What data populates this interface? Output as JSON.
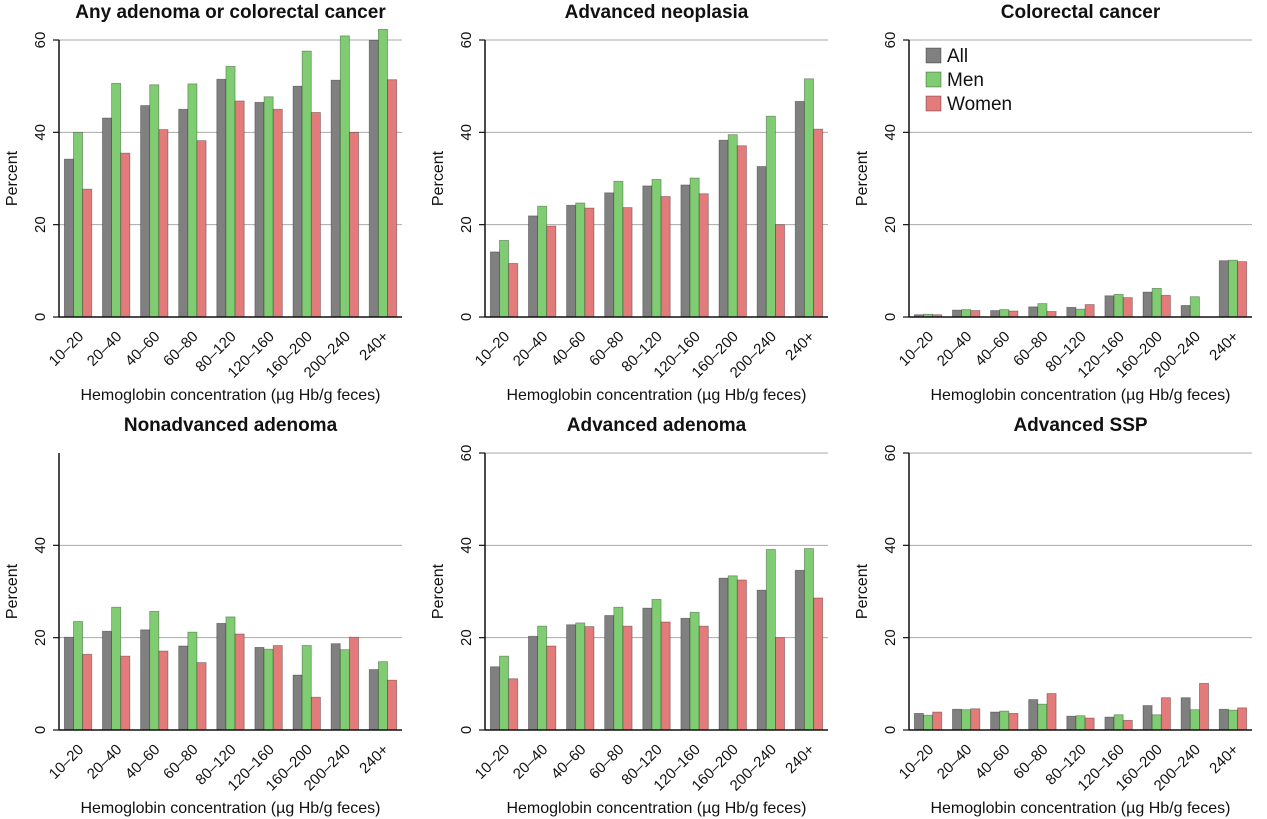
{
  "figure": {
    "categories": [
      "10–20",
      "20–40",
      "40–60",
      "60–80",
      "80–120",
      "120–160",
      "160–200",
      "200–240",
      "240+"
    ],
    "series_colors": {
      "All": "#808080",
      "Men": "#80cc73",
      "Women": "#e37b7b"
    },
    "legend": [
      {
        "name": "All",
        "color": "#808080"
      },
      {
        "name": "Men",
        "color": "#80cc73"
      },
      {
        "name": "Women",
        "color": "#e37b7b"
      }
    ],
    "legend_location": "top-left of the Colorectal cancer panel"
  },
  "chart_data": [
    {
      "type": "bar",
      "title": "Any adenoma or colorectal cancer",
      "xlabel": "Hemoglobin concentration (µg Hb/g feces)",
      "ylabel": "Percent",
      "ylim": [
        0,
        60
      ],
      "yticks": [
        0,
        20,
        40,
        60
      ],
      "ytick_labels": [
        "0",
        "20",
        "40",
        "60"
      ],
      "grid": true,
      "categories": [
        "10–20",
        "20–40",
        "40–60",
        "60–80",
        "80–120",
        "120–160",
        "160–200",
        "200–240",
        "240+"
      ],
      "series": [
        {
          "name": "All",
          "values": [
            34.2,
            43.1,
            45.8,
            45.0,
            51.5,
            46.5,
            50.0,
            51.3,
            59.9
          ]
        },
        {
          "name": "Men",
          "values": [
            40.0,
            50.6,
            50.3,
            50.5,
            54.3,
            47.7,
            57.6,
            60.9,
            62.3
          ]
        },
        {
          "name": "Women",
          "values": [
            27.7,
            35.5,
            40.6,
            38.2,
            46.8,
            45.0,
            44.3,
            40.0,
            51.4
          ]
        }
      ]
    },
    {
      "type": "bar",
      "title": "Advanced neoplasia",
      "xlabel": "Hemoglobin concentration (µg Hb/g feces)",
      "ylabel": "Percent",
      "ylim": [
        0,
        60
      ],
      "yticks": [
        0,
        20,
        40,
        60
      ],
      "ytick_labels": [
        "0",
        "20",
        "40",
        "60"
      ],
      "grid": true,
      "categories": [
        "10–20",
        "20–40",
        "40–60",
        "60–80",
        "80–120",
        "120–160",
        "160–200",
        "200–240",
        "240+"
      ],
      "series": [
        {
          "name": "All",
          "values": [
            14.1,
            21.9,
            24.2,
            26.9,
            28.4,
            28.6,
            38.3,
            32.6,
            46.7
          ]
        },
        {
          "name": "Men",
          "values": [
            16.6,
            24.0,
            24.7,
            29.4,
            29.8,
            30.1,
            39.5,
            43.5,
            51.6
          ]
        },
        {
          "name": "Women",
          "values": [
            11.6,
            19.7,
            23.6,
            23.7,
            26.1,
            26.7,
            37.1,
            20.0,
            40.7
          ]
        }
      ]
    },
    {
      "type": "bar",
      "title": "Colorectal cancer",
      "xlabel": "Hemoglobin concentration (µg Hb/g feces)",
      "ylabel": "Percent",
      "ylim": [
        0,
        60
      ],
      "yticks": [
        0,
        20,
        40,
        60
      ],
      "ytick_labels": [
        "0",
        "20",
        "40",
        "60"
      ],
      "grid": true,
      "legend_location": "top-left",
      "categories": [
        "10–20",
        "20–40",
        "40–60",
        "60–80",
        "80–120",
        "120–160",
        "160–200",
        "200–240",
        "240+"
      ],
      "series": [
        {
          "name": "All",
          "values": [
            0.5,
            1.5,
            1.4,
            2.2,
            2.1,
            4.6,
            5.4,
            2.5,
            12.2
          ]
        },
        {
          "name": "Men",
          "values": [
            0.6,
            1.6,
            1.6,
            2.9,
            1.7,
            4.9,
            6.2,
            4.4,
            12.3
          ]
        },
        {
          "name": "Women",
          "values": [
            0.5,
            1.4,
            1.3,
            1.2,
            2.7,
            4.2,
            4.7,
            0.0,
            12.0
          ]
        }
      ]
    },
    {
      "type": "bar",
      "title": "Nonadvanced adenoma",
      "xlabel": "Hemoglobin concentration (µg Hb/g feces)",
      "ylabel": "Percent",
      "ylim": [
        0,
        60
      ],
      "yticks": [
        0,
        20,
        40
      ],
      "ytick_labels": [
        "0",
        "20",
        "40"
      ],
      "grid": true,
      "categories": [
        "10–20",
        "20–40",
        "40–60",
        "60–80",
        "80–120",
        "120–160",
        "160–200",
        "200–240",
        "240+"
      ],
      "series": [
        {
          "name": "All",
          "values": [
            20.1,
            21.4,
            21.7,
            18.2,
            23.1,
            17.9,
            11.9,
            18.7,
            13.1
          ]
        },
        {
          "name": "Men",
          "values": [
            23.5,
            26.6,
            25.7,
            21.2,
            24.5,
            17.5,
            18.3,
            17.4,
            14.8
          ]
        },
        {
          "name": "Women",
          "values": [
            16.4,
            16.0,
            17.1,
            14.6,
            20.8,
            18.3,
            7.1,
            20.1,
            10.8
          ]
        }
      ]
    },
    {
      "type": "bar",
      "title": "Advanced adenoma",
      "xlabel": "Hemoglobin concentration (µg Hb/g feces)",
      "ylabel": "Percent",
      "ylim": [
        0,
        60
      ],
      "yticks": [
        0,
        20,
        40,
        60
      ],
      "ytick_labels": [
        "0",
        "20",
        "40",
        "60"
      ],
      "grid": true,
      "categories": [
        "10–20",
        "20–40",
        "40–60",
        "60–80",
        "80–120",
        "120–160",
        "160–200",
        "200–240",
        "240+"
      ],
      "series": [
        {
          "name": "All",
          "values": [
            13.7,
            20.3,
            22.8,
            24.8,
            26.4,
            24.2,
            32.9,
            30.3,
            34.6
          ]
        },
        {
          "name": "Men",
          "values": [
            16.0,
            22.5,
            23.2,
            26.6,
            28.3,
            25.5,
            33.4,
            39.1,
            39.3
          ]
        },
        {
          "name": "Women",
          "values": [
            11.1,
            18.2,
            22.4,
            22.5,
            23.4,
            22.5,
            32.5,
            20.0,
            28.6
          ]
        }
      ]
    },
    {
      "type": "bar",
      "title": "Advanced SSP",
      "xlabel": "Hemoglobin concentration (µg Hb/g feces)",
      "ylabel": "Percent",
      "ylim": [
        0,
        60
      ],
      "yticks": [
        0,
        20,
        40,
        60
      ],
      "ytick_labels": [
        "0",
        "20",
        "40",
        "60"
      ],
      "grid": true,
      "categories": [
        "10–20",
        "20–40",
        "40–60",
        "60–80",
        "80–120",
        "120–160",
        "160–200",
        "200–240",
        "240+"
      ],
      "series": [
        {
          "name": "All",
          "values": [
            3.6,
            4.5,
            3.9,
            6.6,
            3.0,
            2.8,
            5.3,
            7.0,
            4.5
          ]
        },
        {
          "name": "Men",
          "values": [
            3.2,
            4.4,
            4.1,
            5.6,
            3.1,
            3.3,
            3.3,
            4.4,
            4.3
          ]
        },
        {
          "name": "Women",
          "values": [
            3.9,
            4.6,
            3.6,
            7.9,
            2.6,
            2.1,
            7.0,
            10.1,
            4.8
          ]
        }
      ]
    }
  ]
}
